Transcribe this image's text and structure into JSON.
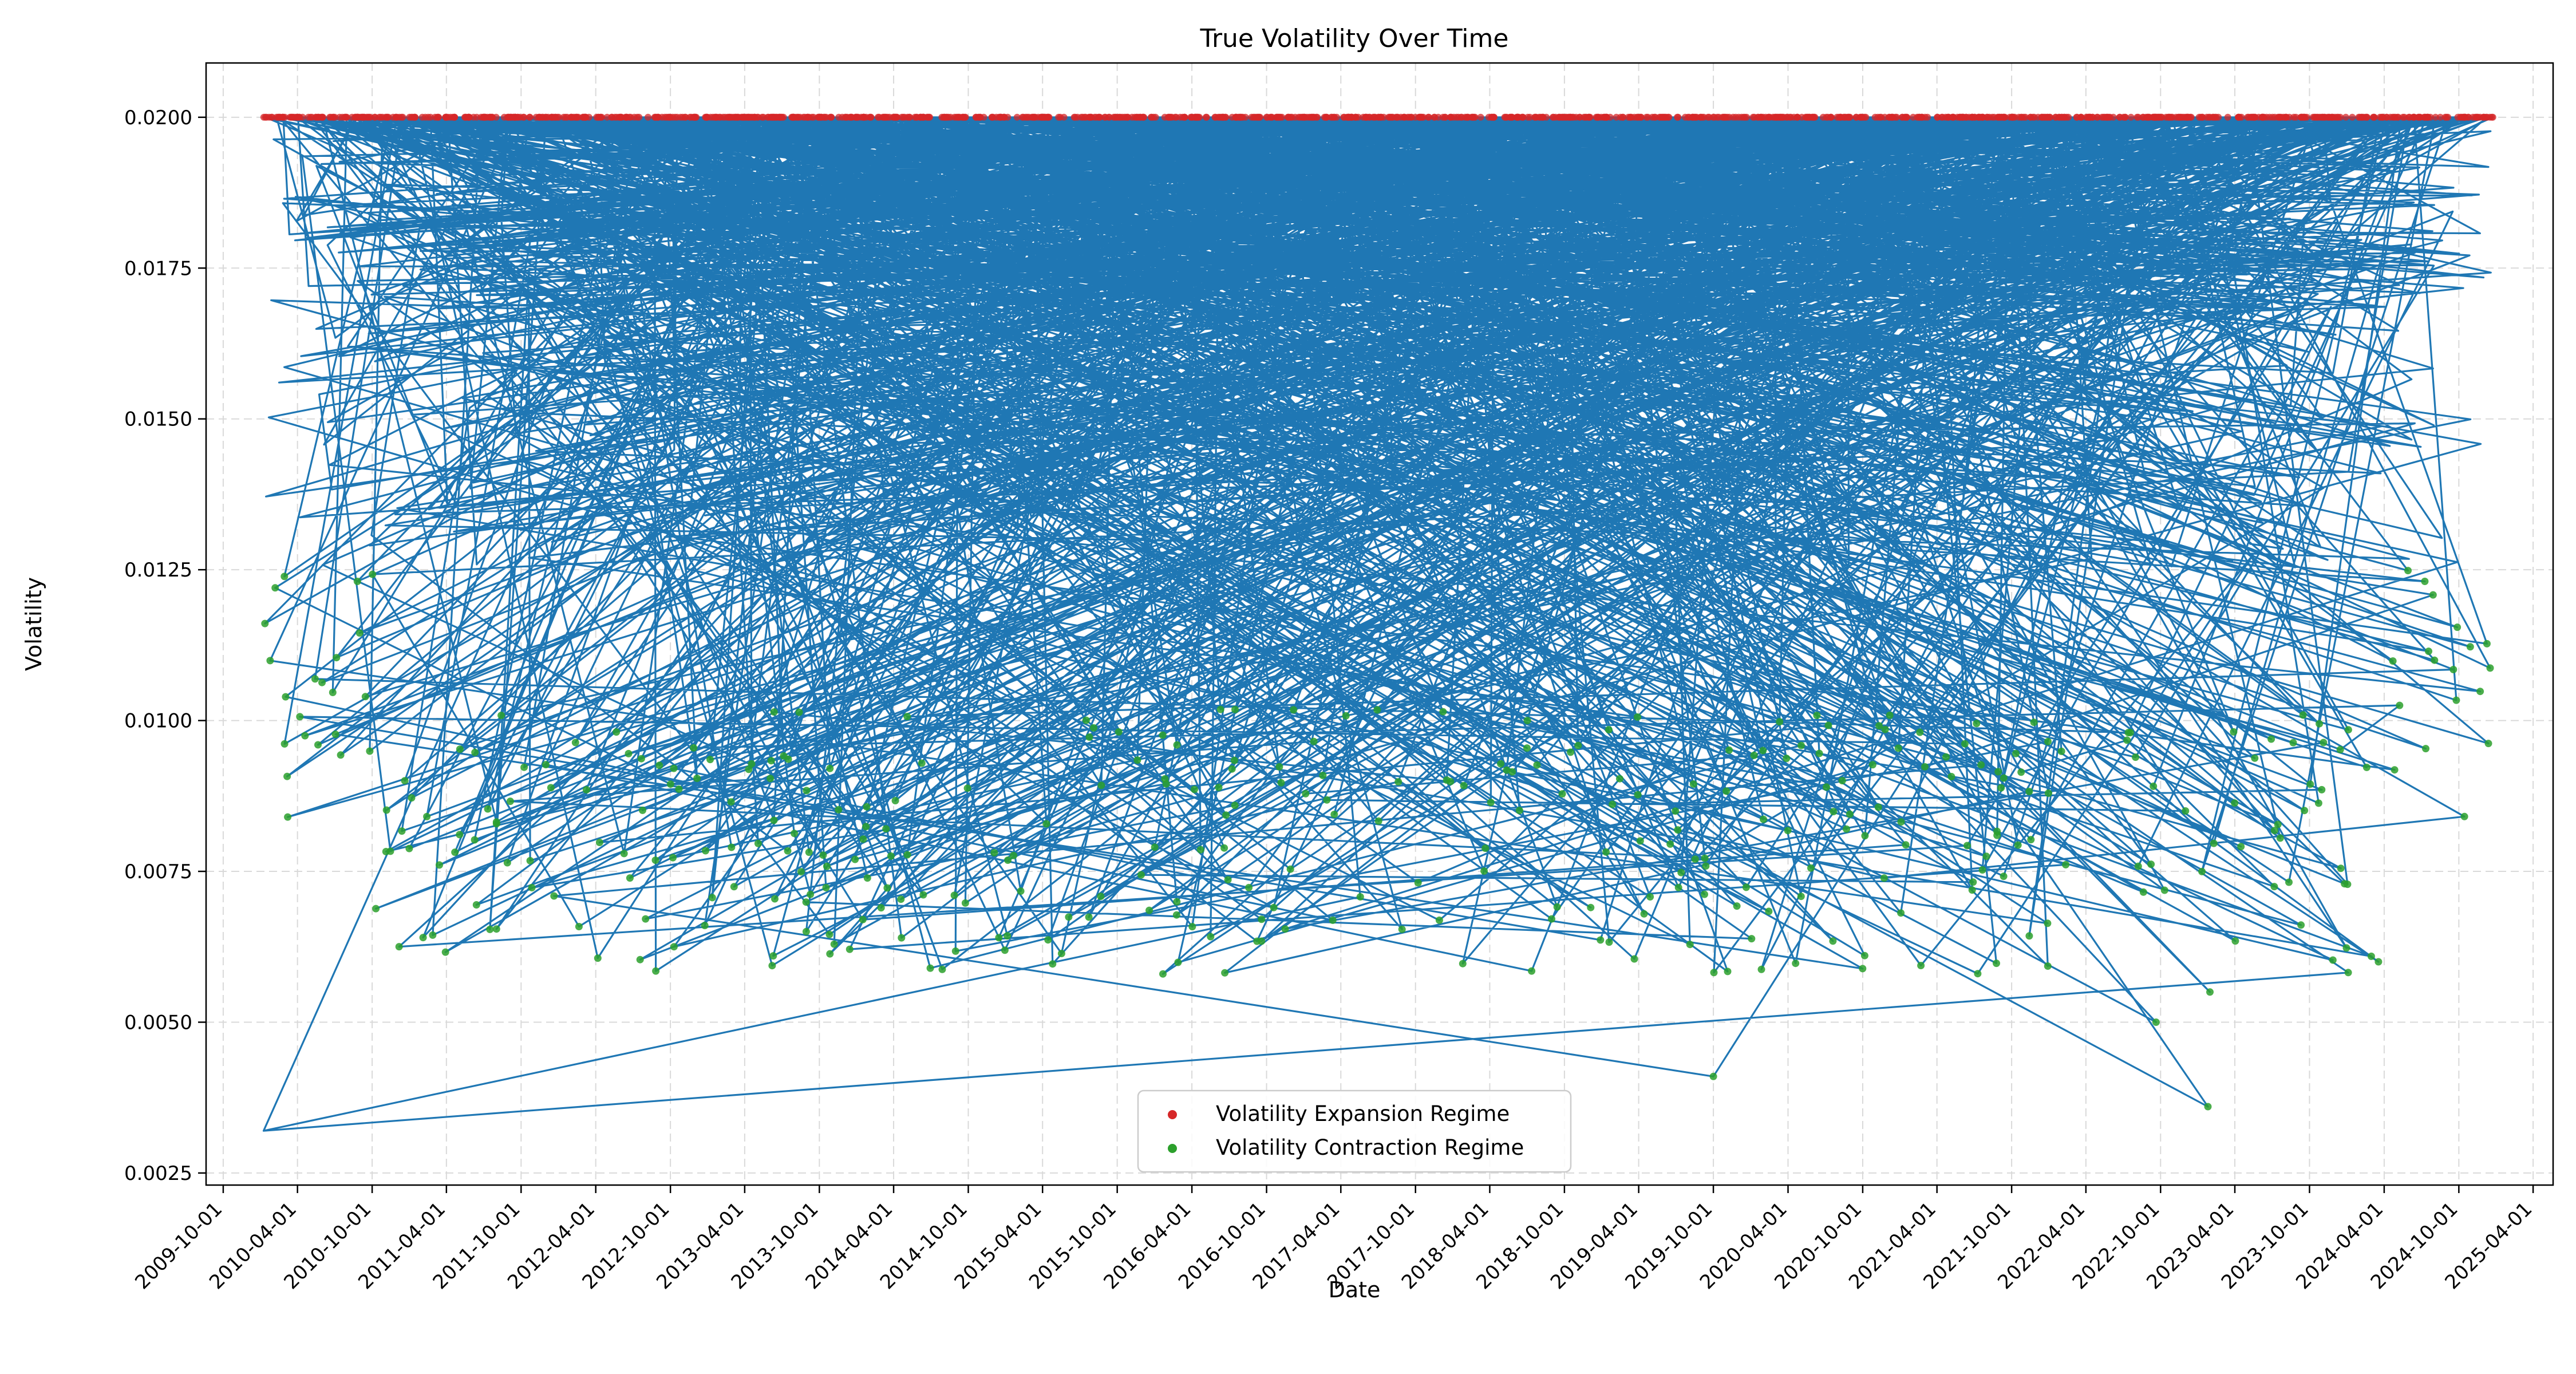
{
  "chart_data": {
    "type": "line",
    "title": "True Volatility Over Time",
    "xlabel": "Date",
    "ylabel": "Volatility",
    "xlim": [
      "2009-08-20",
      "2025-05-20"
    ],
    "ylim": [
      0.0023,
      0.0209
    ],
    "grid": true,
    "xticks": [
      "2009-10-01",
      "2010-04-01",
      "2010-10-01",
      "2011-04-01",
      "2011-10-01",
      "2012-04-01",
      "2012-10-01",
      "2013-04-01",
      "2013-10-01",
      "2014-04-01",
      "2014-10-01",
      "2015-04-01",
      "2015-10-01",
      "2016-04-01",
      "2016-10-01",
      "2017-04-01",
      "2017-10-01",
      "2018-04-01",
      "2018-10-01",
      "2019-04-01",
      "2019-10-01",
      "2020-04-01",
      "2020-10-01",
      "2021-04-01",
      "2021-10-01",
      "2022-04-01",
      "2022-10-01",
      "2023-04-01",
      "2023-10-01",
      "2024-04-01",
      "2024-10-01",
      "2025-04-01"
    ],
    "yticks": [
      "0.0025",
      "0.0050",
      "0.0075",
      "0.0100",
      "0.0125",
      "0.0150",
      "0.0175",
      "0.0200"
    ],
    "yticks_values": [
      0.0025,
      0.005,
      0.0075,
      0.01,
      0.0125,
      0.015,
      0.0175,
      0.02
    ],
    "series_line": {
      "name": "True Volatility",
      "color": "#1f77b4",
      "cap": 0.02,
      "x_range": [
        "2010-01-08",
        "2024-12-30"
      ],
      "note_points": [
        {
          "x": "2010-01-08",
          "y": 0.0032
        },
        {
          "x": "2023-01-25",
          "y": 0.0036
        },
        {
          "x": "2019-10-01",
          "y": 0.0041
        },
        {
          "x": "2022-09-20",
          "y": 0.005
        },
        {
          "x": "2023-01-30",
          "y": 0.0055
        }
      ]
    },
    "series": [
      {
        "name": "Volatility Expansion Regime",
        "color": "#d62728",
        "value": 0.02
      },
      {
        "name": "Volatility Contraction Regime",
        "color": "#2ca02c",
        "range": [
          0.0036,
          0.0125
        ]
      }
    ],
    "legend": {
      "location": "lower-center",
      "entries": [
        "Volatility Expansion Regime",
        "Volatility Contraction Regime"
      ]
    }
  }
}
